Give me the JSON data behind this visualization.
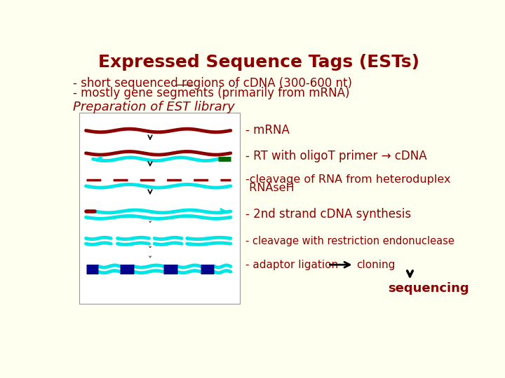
{
  "title": "Expressed Sequence Tags (ESTs)",
  "title_color": "#8B0000",
  "bg_color": "#FFFFF0",
  "text_color": "#8B0000",
  "red_dark": "#8B0000",
  "cyan": "#00E5E5",
  "green_dark": "#006400",
  "navy": "#00008B",
  "black": "#000000",
  "white": "#FFFFFF",
  "label1": "- mRNA",
  "label2": "- RT with oligoT primer → cDNA",
  "label3a": "-cleavage of RNA from heteroduplex",
  "label3b": " RNAseH",
  "label4": "- 2nd strand cDNA synthesis",
  "label5": "- cleavage with restriction endonuclease",
  "label6": "- adaptor ligation",
  "label7": "cloning",
  "label8": "sequencing",
  "bullet1": "- short sequenced regions of cDNA (300-600 nt)",
  "bullet2": "- mostly gene segments (primarily from mRNA)",
  "prep_label": "Preparation of EST library"
}
